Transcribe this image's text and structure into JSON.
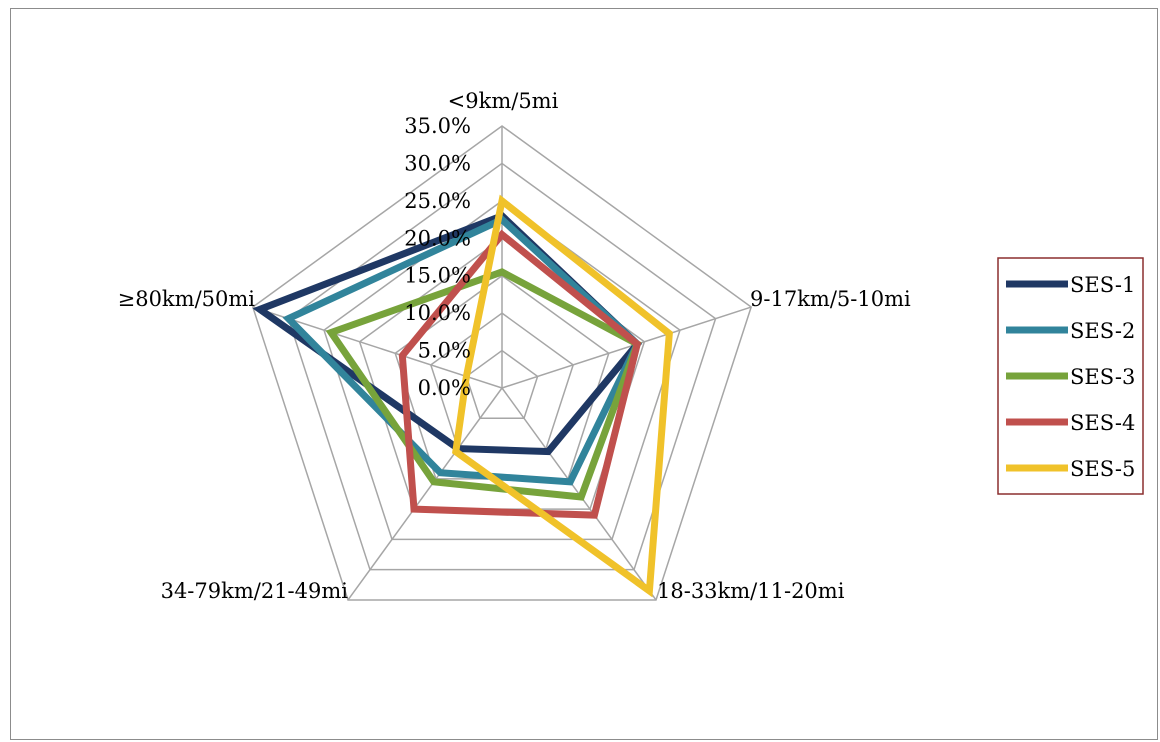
{
  "chart_data": {
    "type": "radar",
    "categories": [
      "<9km/5mi",
      "9-17km/5-10mi",
      "18-33km/11-20mi",
      "34-79km/21-49mi",
      "≥80km/50mi"
    ],
    "rlim": [
      0,
      35
    ],
    "ticks": [
      "0.0%",
      "5.0%",
      "10.0%",
      "15.0%",
      "20.0%",
      "25.0%",
      "30.0%",
      "35.0%"
    ],
    "tick_values": [
      0,
      5,
      10,
      15,
      20,
      25,
      30,
      35
    ],
    "grid": true,
    "legend_position": "right",
    "series": [
      {
        "name": "SES-1",
        "color": "#1f3864",
        "values": [
          23.0,
          19.0,
          10.5,
          10.0,
          34.0
        ]
      },
      {
        "name": "SES-2",
        "color": "#31849b",
        "values": [
          22.5,
          19.0,
          15.5,
          14.0,
          30.0
        ]
      },
      {
        "name": "SES-3",
        "color": "#77a33b",
        "values": [
          15.5,
          19.0,
          18.0,
          15.5,
          24.0
        ]
      },
      {
        "name": "SES-4",
        "color": "#c0504d",
        "values": [
          20.5,
          19.0,
          21.0,
          20.0,
          14.0
        ]
      },
      {
        "name": "SES-5",
        "color": "#f0c22a",
        "values": [
          25.0,
          23.5,
          33.5,
          10.5,
          5.0
        ]
      }
    ]
  }
}
